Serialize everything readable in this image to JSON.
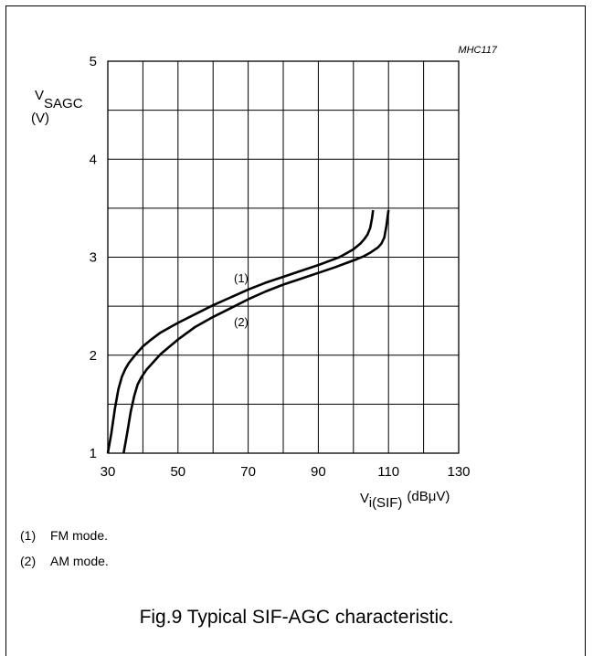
{
  "chart_data": {
    "type": "line",
    "figure_id": "MHC117",
    "ylabel_main": "V",
    "ylabel_sub": "SAGC",
    "ylabel_unit": "(V)",
    "xlabel_main": "V",
    "xlabel_sub": "i(SIF)",
    "xlabel_unit": "(dBμV)",
    "xlim": [
      30,
      130
    ],
    "ylim": [
      1,
      5
    ],
    "x_ticks": [
      30,
      50,
      70,
      90,
      110,
      130
    ],
    "y_ticks": [
      1,
      2,
      3,
      4,
      5
    ],
    "grid": true,
    "series": [
      {
        "name": "(1)",
        "x": [
          30,
          31,
          32,
          33,
          34,
          35,
          36,
          38,
          40,
          42,
          45,
          48,
          50,
          55,
          60,
          65,
          70,
          75,
          80,
          85,
          90,
          93,
          96,
          98,
          100,
          102,
          103,
          104,
          104.8,
          105.3,
          105.6
        ],
        "y": [
          1.0,
          1.2,
          1.45,
          1.65,
          1.78,
          1.86,
          1.92,
          2.01,
          2.09,
          2.15,
          2.23,
          2.29,
          2.33,
          2.42,
          2.51,
          2.59,
          2.67,
          2.74,
          2.8,
          2.86,
          2.92,
          2.96,
          3.0,
          3.04,
          3.08,
          3.14,
          3.18,
          3.23,
          3.3,
          3.4,
          3.48
        ]
      },
      {
        "name": "(2)",
        "x": [
          34.5,
          35.5,
          36.5,
          37.5,
          38.5,
          39.5,
          41,
          43,
          45,
          47,
          50,
          55,
          60,
          65,
          70,
          75,
          80,
          85,
          90,
          95,
          98,
          101,
          103,
          105,
          107,
          108,
          108.8,
          109.4,
          110
        ],
        "y": [
          1.0,
          1.2,
          1.42,
          1.58,
          1.7,
          1.77,
          1.85,
          1.93,
          2.01,
          2.07,
          2.16,
          2.29,
          2.39,
          2.48,
          2.57,
          2.65,
          2.72,
          2.78,
          2.84,
          2.9,
          2.94,
          2.98,
          3.01,
          3.05,
          3.1,
          3.14,
          3.2,
          3.32,
          3.48
        ]
      }
    ]
  },
  "legend": [
    {
      "num": "(1)",
      "text": "FM mode."
    },
    {
      "num": "(2)",
      "text": "AM mode."
    }
  ],
  "caption": "Fig.9  Typical SIF-AGC characteristic."
}
